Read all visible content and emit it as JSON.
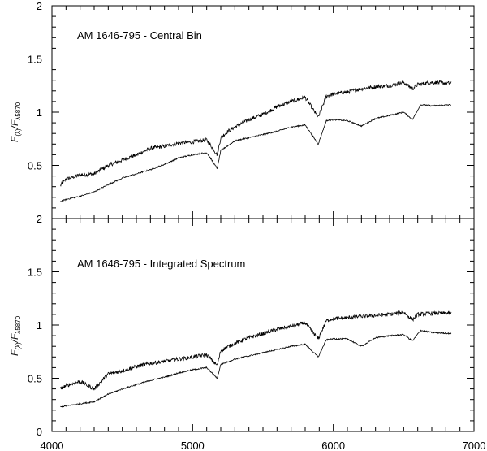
{
  "chart_data": [
    {
      "type": "line",
      "title": "AM 1646-795 - Central Bin",
      "ylabel": "F(λ)/Fλ5870",
      "ylabel_parts": {
        "main": "F",
        "sub1": "(λ)",
        "sep": "/F",
        "sub2": "λ5870"
      },
      "xlim": [
        4000,
        7000
      ],
      "ylim": [
        0,
        2
      ],
      "y_ticks": [
        "0.5",
        "1",
        "1.5",
        "2"
      ],
      "series": [
        {
          "x": [
            4060,
            4100,
            4200,
            4300,
            4400,
            4500,
            4600,
            4700,
            4800,
            4900,
            5000,
            5100,
            5175,
            5200,
            5250,
            5300,
            5400,
            5500,
            5600,
            5700,
            5800,
            5893,
            5950,
            6000,
            6100,
            6200,
            6300,
            6400,
            6500,
            6563,
            6600,
            6700,
            6840
          ],
          "y": [
            0.31,
            0.37,
            0.41,
            0.42,
            0.5,
            0.55,
            0.6,
            0.66,
            0.68,
            0.71,
            0.72,
            0.74,
            0.6,
            0.76,
            0.82,
            0.86,
            0.93,
            0.98,
            1.05,
            1.1,
            1.14,
            0.95,
            1.15,
            1.17,
            1.19,
            1.22,
            1.24,
            1.25,
            1.28,
            1.22,
            1.26,
            1.28,
            1.27
          ]
        },
        {
          "x": [
            4060,
            4100,
            4200,
            4300,
            4400,
            4500,
            4600,
            4700,
            4800,
            4900,
            5000,
            5100,
            5175,
            5200,
            5300,
            5400,
            5500,
            5600,
            5700,
            5800,
            5893,
            5950,
            6000,
            6100,
            6200,
            6300,
            6400,
            6500,
            6563,
            6620,
            6700,
            6840
          ],
          "y": [
            0.16,
            0.18,
            0.21,
            0.25,
            0.32,
            0.38,
            0.42,
            0.46,
            0.51,
            0.57,
            0.6,
            0.62,
            0.47,
            0.64,
            0.73,
            0.76,
            0.79,
            0.82,
            0.86,
            0.88,
            0.7,
            0.92,
            0.93,
            0.92,
            0.87,
            0.94,
            0.97,
            1.0,
            0.93,
            1.07,
            1.06,
            1.07
          ]
        }
      ]
    },
    {
      "type": "line",
      "title": "AM 1646-795 - Integrated Spectrum",
      "ylabel": "F(λ)/Fλ5870",
      "ylabel_parts": {
        "main": "F",
        "sub1": "(λ)",
        "sep": "/F",
        "sub2": "λ5870"
      },
      "xlim": [
        4000,
        7000
      ],
      "ylim": [
        0,
        2
      ],
      "x_ticks": [
        "4000",
        "5000",
        "6000",
        "7000"
      ],
      "y_ticks": [
        "0",
        "0.5",
        "1",
        "1.5",
        "2"
      ],
      "series": [
        {
          "x": [
            4060,
            4100,
            4200,
            4300,
            4400,
            4500,
            4600,
            4700,
            4800,
            4900,
            5000,
            5100,
            5175,
            5200,
            5300,
            5400,
            5500,
            5600,
            5700,
            5800,
            5893,
            5950,
            6000,
            6100,
            6200,
            6300,
            6400,
            6500,
            6563,
            6600,
            6700,
            6840
          ],
          "y": [
            0.4,
            0.43,
            0.47,
            0.4,
            0.54,
            0.57,
            0.61,
            0.64,
            0.66,
            0.68,
            0.7,
            0.72,
            0.62,
            0.76,
            0.83,
            0.88,
            0.92,
            0.96,
            0.99,
            1.02,
            0.87,
            1.04,
            1.06,
            1.07,
            1.08,
            1.09,
            1.1,
            1.12,
            1.05,
            1.1,
            1.11,
            1.11
          ]
        },
        {
          "x": [
            4060,
            4100,
            4200,
            4300,
            4400,
            4500,
            4600,
            4700,
            4800,
            4900,
            5000,
            5100,
            5175,
            5200,
            5300,
            5400,
            5500,
            5600,
            5700,
            5800,
            5893,
            5950,
            6000,
            6100,
            6200,
            6300,
            6400,
            6500,
            6563,
            6620,
            6700,
            6840
          ],
          "y": [
            0.23,
            0.24,
            0.26,
            0.28,
            0.35,
            0.4,
            0.44,
            0.48,
            0.51,
            0.55,
            0.58,
            0.6,
            0.5,
            0.63,
            0.68,
            0.71,
            0.74,
            0.77,
            0.8,
            0.82,
            0.7,
            0.86,
            0.87,
            0.87,
            0.8,
            0.88,
            0.9,
            0.91,
            0.85,
            0.95,
            0.93,
            0.92
          ]
        }
      ]
    }
  ]
}
